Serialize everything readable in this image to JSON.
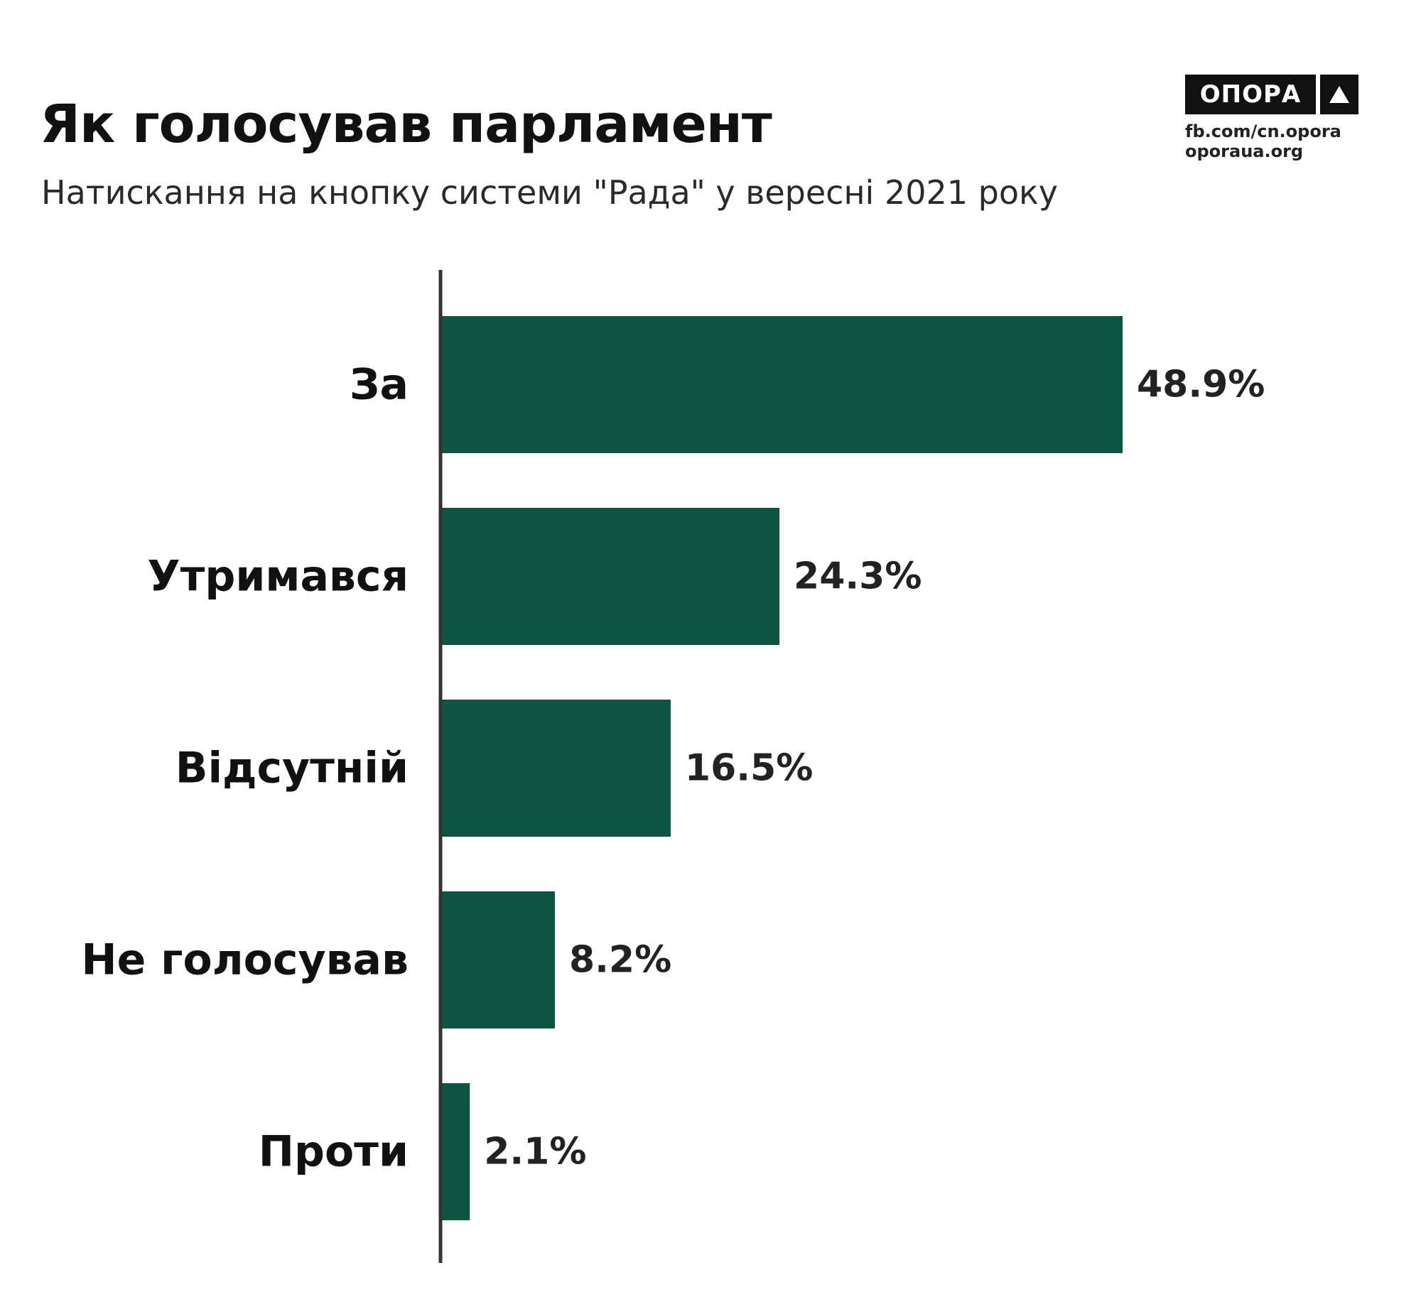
{
  "header": {
    "title": "Як голосував парламент",
    "subtitle": "Натискання на кнопку системи \"Рада\" у вересні 2021 року"
  },
  "logo": {
    "wordmark": "ОПОРА",
    "icon": "triangle-up-icon",
    "links": [
      "fb.com/cn.opora",
      "oporaua.org"
    ]
  },
  "colors": {
    "bar": "#0e5442",
    "axis": "#333333",
    "text": "#111111"
  },
  "chart_data": {
    "type": "bar",
    "orientation": "horizontal",
    "categories": [
      "За",
      "Утримався",
      "Відсутній",
      "Не голосував",
      "Проти"
    ],
    "values": [
      48.9,
      24.3,
      16.5,
      8.2,
      2.1
    ],
    "value_labels": [
      "48.9%",
      "24.3%",
      "16.5%",
      "8.2%",
      "2.1%"
    ],
    "unit": "%",
    "xlim": [
      0,
      48.9
    ],
    "grid": false,
    "legend": "none"
  }
}
